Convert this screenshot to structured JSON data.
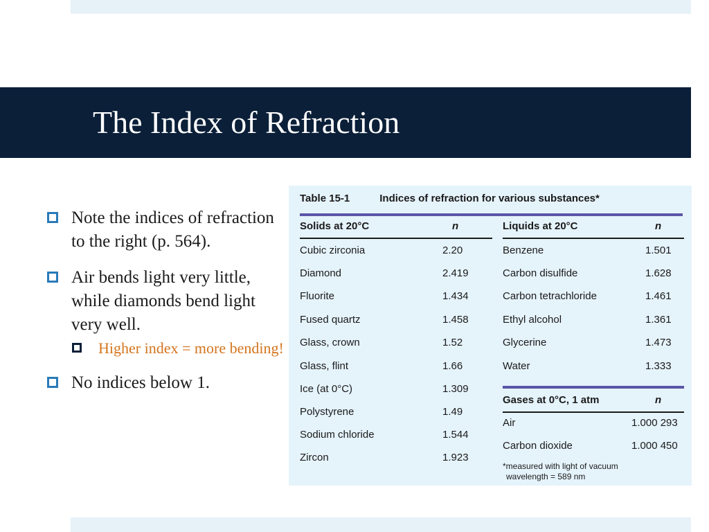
{
  "slide": {
    "title": "The Index of Refraction",
    "bullets": [
      "Note the indices of refraction to the right (p. 564).",
      "Air bends light very little, while diamonds bend light very well."
    ],
    "sub_bullet": "Higher index = more bending!",
    "bullet_last": "No indices below 1."
  },
  "table": {
    "number": "Table 15-1",
    "caption": "Indices of refraction for various substances*",
    "solids_header": "Solids at 20°C",
    "liquids_header": "Liquids at 20°C",
    "gases_header": "Gases at 0°C, 1 atm",
    "n_header": "n",
    "solids": [
      {
        "name": "Cubic zirconia",
        "n": "2.20"
      },
      {
        "name": "Diamond",
        "n": "2.419"
      },
      {
        "name": "Fluorite",
        "n": "1.434"
      },
      {
        "name": "Fused quartz",
        "n": "1.458"
      },
      {
        "name": "Glass, crown",
        "n": "1.52"
      },
      {
        "name": "Glass, flint",
        "n": "1.66"
      },
      {
        "name": "Ice (at 0°C)",
        "n": "1.309"
      },
      {
        "name": "Polystyrene",
        "n": "1.49"
      },
      {
        "name": "Sodium chloride",
        "n": "1.544"
      },
      {
        "name": "Zircon",
        "n": "1.923"
      }
    ],
    "liquids": [
      {
        "name": "Benzene",
        "n": "1.501"
      },
      {
        "name": "Carbon disulfide",
        "n": "1.628"
      },
      {
        "name": "Carbon tetrachloride",
        "n": "1.461"
      },
      {
        "name": "Ethyl alcohol",
        "n": "1.361"
      },
      {
        "name": "Glycerine",
        "n": "1.473"
      },
      {
        "name": "Water",
        "n": "1.333"
      }
    ],
    "gases": [
      {
        "name": "Air",
        "n": "1.000 293"
      },
      {
        "name": "Carbon dioxide",
        "n": "1.000 450"
      }
    ],
    "footnote_1": "*measured with light of vacuum",
    "footnote_2": "wavelength = 589 nm"
  },
  "colors": {
    "title_bar": "#0b1f38",
    "bullet_square": "#2a7ab8",
    "sub_bullet_text": "#d4741e",
    "table_background": "#e5f3fb",
    "table_rule": "#5a56a8"
  }
}
